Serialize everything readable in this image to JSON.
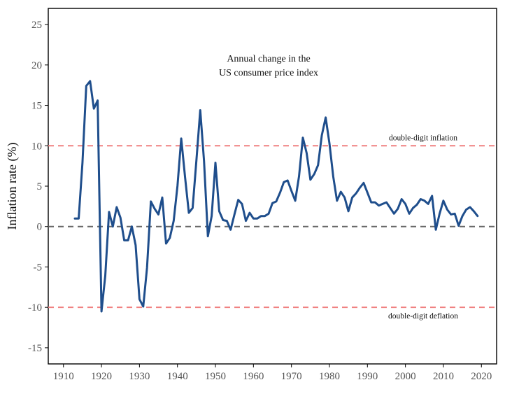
{
  "chart_data": {
    "type": "line",
    "title_lines": [
      "Annual change in the",
      "US consumer price index"
    ],
    "xlabel": "",
    "ylabel": "Inflation rate (%)",
    "xlim": [
      1906,
      2024
    ],
    "ylim": [
      -17,
      27
    ],
    "xticks": [
      1910,
      1920,
      1930,
      1940,
      1950,
      1960,
      1970,
      1980,
      1990,
      2000,
      2010,
      2020
    ],
    "yticks": [
      -15,
      -10,
      -5,
      0,
      5,
      10,
      15,
      20,
      25
    ],
    "grid": false,
    "line_color": "#1f4e8c",
    "reference_lines": [
      {
        "y": 10,
        "label": "double-digit inflation",
        "color": "#f08080"
      },
      {
        "y": 0,
        "label": "",
        "color": "#666666"
      },
      {
        "y": -10,
        "label": "double-digit deflation",
        "color": "#f08080"
      }
    ],
    "x": [
      1913,
      1914,
      1915,
      1916,
      1917,
      1918,
      1919,
      1920,
      1921,
      1922,
      1923,
      1924,
      1925,
      1926,
      1927,
      1928,
      1929,
      1930,
      1931,
      1932,
      1933,
      1934,
      1935,
      1936,
      1937,
      1938,
      1939,
      1940,
      1941,
      1942,
      1943,
      1944,
      1945,
      1946,
      1947,
      1948,
      1949,
      1950,
      1951,
      1952,
      1953,
      1954,
      1955,
      1956,
      1957,
      1958,
      1959,
      1960,
      1961,
      1962,
      1963,
      1964,
      1965,
      1966,
      1967,
      1968,
      1969,
      1970,
      1971,
      1972,
      1973,
      1974,
      1975,
      1976,
      1977,
      1978,
      1979,
      1980,
      1981,
      1982,
      1983,
      1984,
      1985,
      1986,
      1987,
      1988,
      1989,
      1990,
      1991,
      1992,
      1993,
      1994,
      1995,
      1996,
      1997,
      1998,
      1999,
      2000,
      2001,
      2002,
      2003,
      2004,
      2005,
      2006,
      2007,
      2008,
      2009,
      2010,
      2011,
      2012,
      2013,
      2014,
      2015,
      2016,
      2017,
      2018,
      2019
    ],
    "y": [
      1.0,
      1.0,
      7.9,
      17.4,
      18.0,
      14.6,
      15.6,
      -10.5,
      -6.1,
      1.8,
      0.0,
      2.4,
      1.1,
      -1.7,
      -1.7,
      0.0,
      -2.3,
      -9.0,
      -9.9,
      -5.1,
      3.1,
      2.2,
      1.5,
      3.6,
      -2.1,
      -1.4,
      0.7,
      5.0,
      10.9,
      6.1,
      1.7,
      2.3,
      8.3,
      14.4,
      8.1,
      -1.2,
      1.3,
      7.9,
      1.9,
      0.8,
      0.7,
      -0.4,
      1.5,
      3.3,
      2.8,
      0.7,
      1.7,
      1.0,
      1.0,
      1.3,
      1.3,
      1.6,
      2.9,
      3.1,
      4.2,
      5.5,
      5.7,
      4.4,
      3.2,
      6.2,
      11.0,
      9.1,
      5.8,
      6.5,
      7.6,
      11.3,
      13.5,
      10.3,
      6.2,
      3.2,
      4.3,
      3.6,
      1.9,
      3.6,
      4.1,
      4.8,
      5.4,
      4.2,
      3.0,
      3.0,
      2.6,
      2.8,
      3.0,
      2.3,
      1.6,
      2.2,
      3.4,
      2.8,
      1.6,
      2.3,
      2.7,
      3.4,
      3.2,
      2.8,
      3.8,
      -0.4,
      1.6,
      3.2,
      2.1,
      1.5,
      1.6,
      0.1,
      1.3,
      2.1,
      2.4,
      1.9,
      1.3
    ]
  }
}
